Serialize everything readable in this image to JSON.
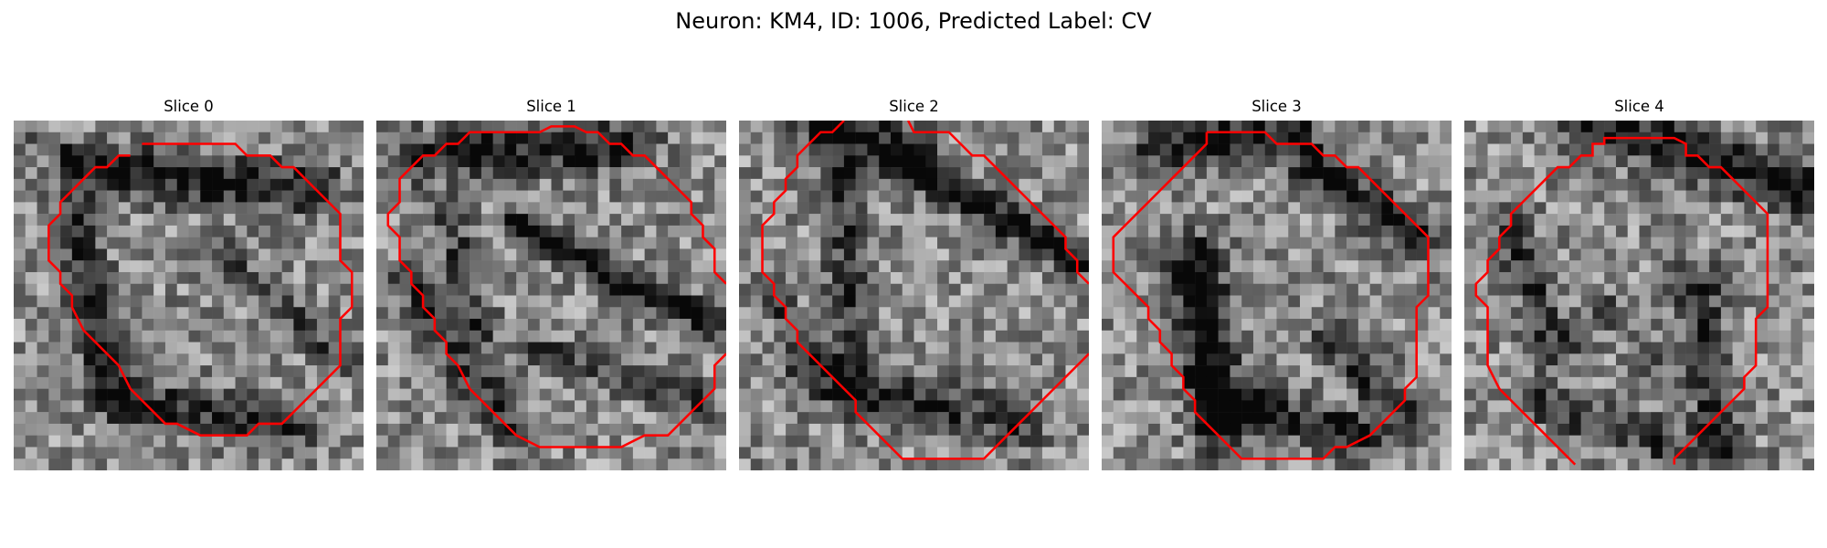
{
  "figure": {
    "title": "Neuron: KM4, ID: 1006, Predicted Label: CV",
    "outline_color": "#ff0000"
  },
  "panels": [
    {
      "title": "Slice 0"
    },
    {
      "title": "Slice 1"
    },
    {
      "title": "Slice 2"
    },
    {
      "title": "Slice 3"
    },
    {
      "title": "Slice 4"
    }
  ]
}
